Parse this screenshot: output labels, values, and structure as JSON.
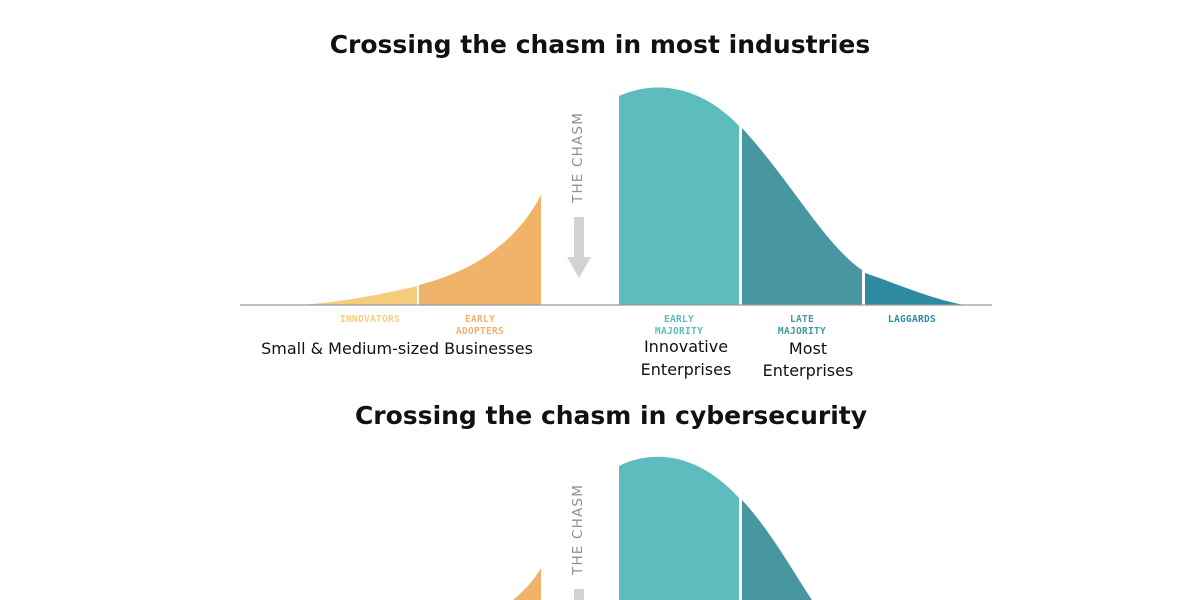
{
  "panels": [
    {
      "title": "Crossing the chasm in most industries",
      "chasm_label": "THE CHASM",
      "segments": [
        {
          "line1": "INNOVATORS",
          "line2": ""
        },
        {
          "line1": "EARLY",
          "line2": "ADOPTERS"
        },
        {
          "line1": "EARLY",
          "line2": "MAJORITY"
        },
        {
          "line1": "LATE",
          "line2": "MAJORITY"
        },
        {
          "line1": "LAGGARDS",
          "line2": ""
        }
      ],
      "annotations": {
        "smb": "Small & Medium-sized Businesses",
        "innovative_line1": "Innovative",
        "innovative_line2": "Enterprises",
        "most_line1": "Most",
        "most_line2": "Enterprises"
      }
    },
    {
      "title": "Crossing the chasm in cybersecurity",
      "chasm_label": "THE CHASM"
    }
  ],
  "colors": {
    "innovators": "#f6cd7d",
    "early_adopters": "#f0b36a",
    "early_majority": "#5dbcbd",
    "late_majority": "#4896a0",
    "laggards": "#2e8aa1",
    "baseline": "#9a9a9a",
    "chasm_arrow": "#d2d2d2",
    "chasm_text": "#8f8f8f"
  }
}
